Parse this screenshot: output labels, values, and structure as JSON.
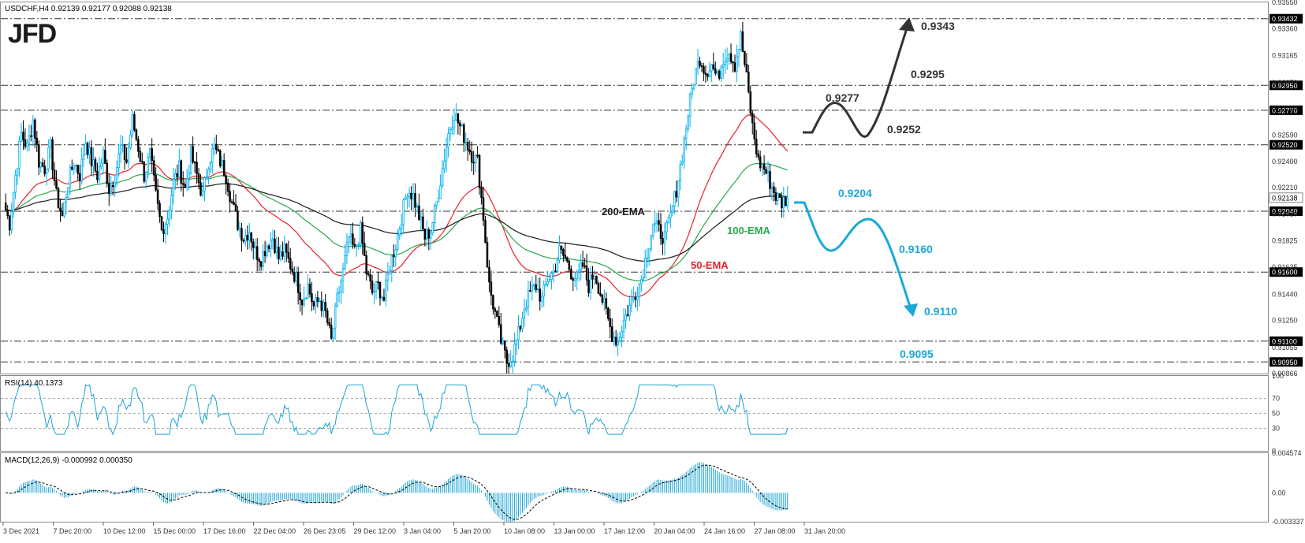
{
  "header": {
    "symbol_info": "USDCHF,H4 0.92139 0.92177 0.92088 0.92138",
    "logo_text": "JFD"
  },
  "colors": {
    "up_candle": "#00b0f0",
    "down_candle": "#000000",
    "ema50": "#e8202a",
    "ema100": "#29a84a",
    "ema200": "#1a1a1a",
    "rsi_line": "#1aa3d4",
    "macd_hist": "#1aa3d4",
    "bull_arrow": "#333333",
    "bear_arrow": "#1aa9d8",
    "grid_level": "#333333"
  },
  "chart_data": [
    {
      "type": "candlestick",
      "name": "USDCHF H4",
      "ylim": [
        0.90866,
        0.9355
      ],
      "y_ticks": [
        "0.93550",
        "0.93360",
        "0.93165",
        "0.92970",
        "0.92780",
        "0.92590",
        "0.92400",
        "0.92210",
        "0.92020",
        "0.91825",
        "0.91635",
        "0.91440",
        "0.91250",
        "0.91055",
        "0.90866"
      ],
      "x_ticks": [
        "3 Dec 2021",
        "7 Dec 20:00",
        "10 Dec 12:00",
        "15 Dec 00:00",
        "17 Dec 16:00",
        "22 Dec 04:00",
        "26 Dec 23:05",
        "29 Dec 12:00",
        "3 Jan 04:00",
        "5 Jan 20:00",
        "10 Jan 08:00",
        "13 Jan 00:00",
        "17 Jan 12:00",
        "20 Jan 04:00",
        "24 Jan 16:00",
        "27 Jan 08:00",
        "31 Jan 20:00"
      ],
      "price_path": [
        0.921,
        0.9195,
        0.923,
        0.926,
        0.925,
        0.927,
        0.924,
        0.9235,
        0.925,
        0.9215,
        0.92,
        0.9225,
        0.924,
        0.923,
        0.9255,
        0.924,
        0.923,
        0.9245,
        0.922,
        0.923,
        0.925,
        0.924,
        0.927,
        0.925,
        0.923,
        0.9245,
        0.9215,
        0.919,
        0.92,
        0.9225,
        0.9235,
        0.922,
        0.9245,
        0.923,
        0.9215,
        0.924,
        0.925,
        0.924,
        0.923,
        0.921,
        0.9195,
        0.9185,
        0.919,
        0.9175,
        0.917,
        0.918,
        0.9185,
        0.917,
        0.9175,
        0.9165,
        0.9155,
        0.914,
        0.915,
        0.9135,
        0.914,
        0.913,
        0.911,
        0.914,
        0.916,
        0.9185,
        0.9175,
        0.919,
        0.916,
        0.9145,
        0.915,
        0.914,
        0.9165,
        0.918,
        0.92,
        0.922,
        0.9215,
        0.92,
        0.9185,
        0.919,
        0.921,
        0.9235,
        0.926,
        0.9275,
        0.9265,
        0.9255,
        0.9245,
        0.924,
        0.92,
        0.915,
        0.913,
        0.911,
        0.9095,
        0.91,
        0.9115,
        0.9135,
        0.9145,
        0.915,
        0.914,
        0.9155,
        0.916,
        0.9175,
        0.917,
        0.916,
        0.9155,
        0.9165,
        0.915,
        0.916,
        0.9145,
        0.913,
        0.9115,
        0.911,
        0.9125,
        0.9135,
        0.9145,
        0.9155,
        0.9175,
        0.9195,
        0.919,
        0.9185,
        0.92,
        0.922,
        0.9245,
        0.9275,
        0.93,
        0.9315,
        0.9305,
        0.931,
        0.93,
        0.9315,
        0.932,
        0.931,
        0.933,
        0.93,
        0.9265,
        0.924,
        0.9235,
        0.9225,
        0.9215,
        0.921,
        0.9214
      ],
      "levels": [
        {
          "value": 0.93432,
          "label": "0.93432"
        },
        {
          "value": 0.9295,
          "label": "0.92950"
        },
        {
          "value": 0.9277,
          "label": "0.92770"
        },
        {
          "value": 0.9252,
          "label": "0.92520"
        },
        {
          "value": 0.9204,
          "label": "0.92040"
        },
        {
          "value": 0.916,
          "label": "0.91600"
        },
        {
          "value": 0.911,
          "label": "0.91100"
        },
        {
          "value": 0.9095,
          "label": "0.90950"
        }
      ],
      "current_price": {
        "value": 0.92138,
        "label": "0.92138"
      },
      "ema_labels": {
        "ema200": "200-EMA",
        "ema100": "100-EMA",
        "ema50": "50-EMA"
      },
      "annotations": {
        "bull": [
          "0.9343",
          "0.9295",
          "0.9277",
          "0.9252"
        ],
        "bear": [
          "0.9204",
          "0.9160",
          "0.9110",
          "0.9095"
        ]
      }
    },
    {
      "type": "line",
      "name": "RSI(14)",
      "title": "RSI(14) 40.1373",
      "ylim": [
        0,
        100
      ],
      "y_ticks": [
        "100",
        "70",
        "50",
        "30",
        "0"
      ],
      "levels": [
        70,
        50,
        30
      ]
    },
    {
      "type": "bar",
      "name": "MACD(12,26,9)",
      "title": "MACD(12,26,9) -0.000992 0.000350",
      "ylim": [
        -0.003337,
        0.004574
      ],
      "y_ticks": [
        "0.004574",
        "0.00",
        "-0.003337"
      ]
    }
  ]
}
